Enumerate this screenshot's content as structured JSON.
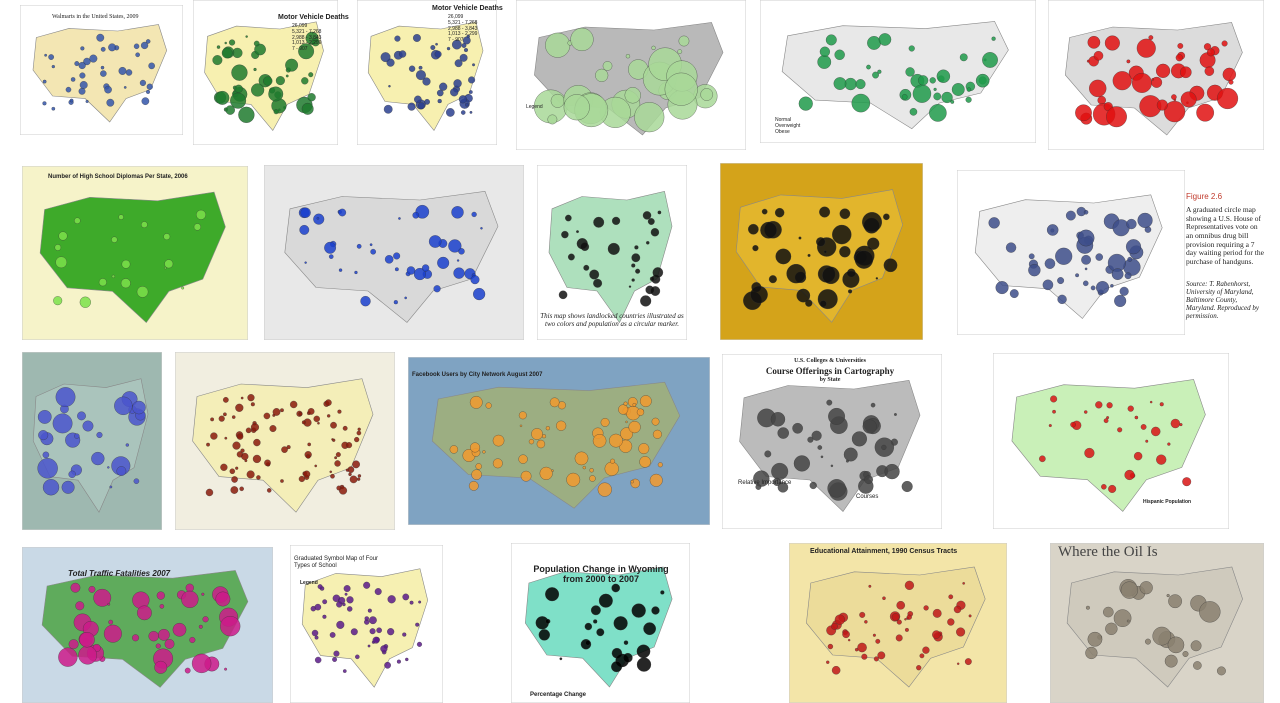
{
  "thumbnails": [
    {
      "title": "Walmarts in the United States, 2009"
    },
    {
      "title": "Motor Vehicle Deaths",
      "legend": [
        "26,099",
        "5,321 - 7,268",
        "2,988 - 3,843",
        "1,013 - 2,299",
        "7 - 907"
      ]
    },
    {
      "title": "Motor Vehicle Deaths",
      "legend": [
        "26,099",
        "5,321 - 7,268",
        "2,988 - 3,843",
        "1,013 - 2,299",
        "7 - 907"
      ]
    },
    {
      "legend_title": "Legend"
    },
    {
      "legend": [
        "Normal",
        "Overweight",
        "Obese"
      ]
    },
    {
      "title": "Number of High School Diplomas Per State, 2006"
    },
    {
      "caption": "This map shows landlocked countries illustrated as two colors and population as a circular marker."
    },
    {
      "figure": "Figure 2.6",
      "caption": "A graduated circle map showing a U.S. House of Representatives vote on an omnibus drug bill provision requiring a 7 day waiting period for the purchase of handguns.",
      "source": "Source: T. Rabenhorst, University of Maryland, Baltimore County, Maryland. Reproduced by permission."
    },
    {
      "title": "Facebook Users by City Network August 2007"
    },
    {
      "title": [
        "U.S. Colleges & Universities",
        "Course Offerings in Cartography",
        "by State"
      ],
      "legend_title": "Relative Importance",
      "size_title": "Courses"
    },
    {
      "legend_title": "Hispanic Population"
    },
    {
      "title": "Total Traffic Fatalities 2007"
    },
    {
      "title": "Graduated Symbol Map of Four Types of School",
      "legend_title": "Legend"
    },
    {
      "title": "Population Change in Wyoming from 2000 to 2007",
      "legend_title": "Percentage Change"
    },
    {
      "title": "Educational Attainment, 1990 Census Tracts"
    },
    {
      "title": "Where the Oil Is"
    }
  ]
}
